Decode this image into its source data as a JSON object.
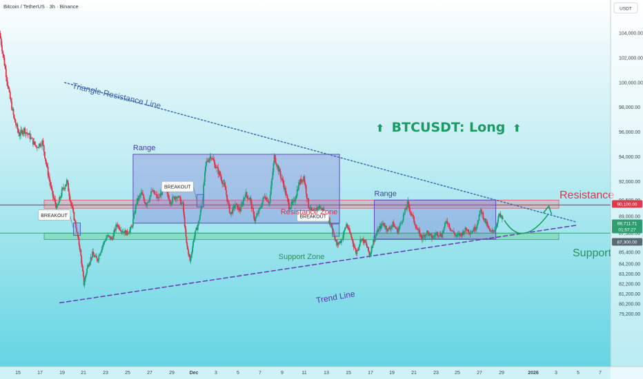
{
  "header": {
    "symbol_line": "Bitcoin / TetherUS · 3h · Binance",
    "currency_button": "USDT"
  },
  "chart_data": {
    "type": "candlestick",
    "title": "BTCUSDT: Long",
    "symbol": "BTCUSDT",
    "timeframe": "3h",
    "exchange": "Binance",
    "y_ticks": [
      104000,
      102000,
      100000,
      98000,
      96000,
      94000,
      92000,
      90500,
      89000,
      87300,
      86600,
      85400,
      84200,
      83200,
      82200,
      81200,
      80200,
      79200
    ],
    "y_tick_labels": [
      "104,000.00",
      "102,000.00",
      "100,000.00",
      "98,000.00",
      "96,000.00",
      "94,000.00",
      "92,000.00",
      "90,500.00",
      "89,000.00",
      "87,300.00",
      "86,600.00",
      "85,400.00",
      "84,200.00",
      "83,200.00",
      "82,200.00",
      "81,200.00",
      "80,200.00",
      "79,200.00"
    ],
    "x_ticks": [
      "15",
      "17",
      "19",
      "21",
      "23",
      "25",
      "27",
      "29",
      "Dec",
      "3",
      "5",
      "7",
      "9",
      "11",
      "13",
      "15",
      "17",
      "19",
      "21",
      "23",
      "25",
      "27",
      "29",
      "2026",
      "3",
      "5",
      "7"
    ],
    "price_tags": [
      {
        "label": "90,100.00",
        "value": 90100,
        "color": "#e03a4a"
      },
      {
        "label": "88,711.71",
        "value": 88711.71,
        "color": "#2e9e6e"
      },
      {
        "label": "01:57:27",
        "value": 88400,
        "color": "#2e9e6e"
      },
      {
        "label": "87,300.00",
        "value": 87300,
        "color": "#5a6a73"
      }
    ],
    "levels": {
      "resistance": 90100,
      "resistance_zone": [
        89800,
        90500
      ],
      "support": 87300,
      "support_zone": [
        86650,
        87300
      ]
    },
    "trendlines": [
      {
        "name": "Triangle Resistance Line",
        "from": [
          0.106,
          100000
        ],
        "to": [
          0.945,
          88400
        ],
        "style": "dotted",
        "color": "#3d72b8"
      },
      {
        "name": "Trend Line",
        "from": [
          0.098,
          80300
        ],
        "to": [
          0.945,
          88100
        ],
        "style": "dashed",
        "color": "#6a3fb5"
      }
    ],
    "ranges": [
      {
        "label": "Range",
        "x": [
          0.218,
          0.556
        ],
        "y": [
          88300,
          94200
        ]
      },
      {
        "label": "Range",
        "x": [
          0.613,
          0.812
        ],
        "y": [
          86700,
          90500
        ]
      }
    ],
    "breakouts": [
      {
        "label": "BREAKOUT",
        "x": 0.126,
        "value": 87700
      },
      {
        "label": "BREAKOUT",
        "x": 0.328,
        "value": 90450
      },
      {
        "label": "BREAKOUT",
        "x": 0.55,
        "value": 87600
      }
    ],
    "annotations": {
      "range": "Range",
      "resistance_zone": "Resistance Zone",
      "support_zone": "Support Zone",
      "triangle_resistance": "Triangle Resistance Line",
      "trend_line": "Trend Line",
      "resistance": "Resistance",
      "support": "Support",
      "title_arrow": "⬆"
    },
    "price_path": [
      [
        0.0,
        104000
      ],
      [
        0.008,
        101500
      ],
      [
        0.016,
        99000
      ],
      [
        0.024,
        97000
      ],
      [
        0.032,
        95800
      ],
      [
        0.04,
        96200
      ],
      [
        0.05,
        95600
      ],
      [
        0.06,
        94800
      ],
      [
        0.07,
        95200
      ],
      [
        0.078,
        93000
      ],
      [
        0.086,
        91000
      ],
      [
        0.094,
        89800
      ],
      [
        0.102,
        91200
      ],
      [
        0.11,
        92000
      ],
      [
        0.118,
        90000
      ],
      [
        0.126,
        87600
      ],
      [
        0.132,
        85500
      ],
      [
        0.138,
        82200
      ],
      [
        0.144,
        84000
      ],
      [
        0.152,
        85200
      ],
      [
        0.16,
        84600
      ],
      [
        0.168,
        86000
      ],
      [
        0.176,
        87000
      ],
      [
        0.184,
        86700
      ],
      [
        0.192,
        88200
      ],
      [
        0.2,
        87600
      ],
      [
        0.208,
        87300
      ],
      [
        0.216,
        87800
      ],
      [
        0.224,
        90300
      ],
      [
        0.232,
        91000
      ],
      [
        0.24,
        90200
      ],
      [
        0.25,
        91200
      ],
      [
        0.26,
        90600
      ],
      [
        0.27,
        91600
      ],
      [
        0.28,
        90400
      ],
      [
        0.29,
        90900
      ],
      [
        0.3,
        90100
      ],
      [
        0.306,
        86200
      ],
      [
        0.312,
        84500
      ],
      [
        0.318,
        86800
      ],
      [
        0.326,
        88400
      ],
      [
        0.332,
        90500
      ],
      [
        0.338,
        93500
      ],
      [
        0.346,
        94100
      ],
      [
        0.354,
        93200
      ],
      [
        0.362,
        92400
      ],
      [
        0.37,
        91300
      ],
      [
        0.378,
        89200
      ],
      [
        0.386,
        90100
      ],
      [
        0.394,
        89600
      ],
      [
        0.402,
        91000
      ],
      [
        0.41,
        90600
      ],
      [
        0.418,
        88600
      ],
      [
        0.426,
        89700
      ],
      [
        0.434,
        90900
      ],
      [
        0.442,
        90300
      ],
      [
        0.45,
        94000
      ],
      [
        0.458,
        92800
      ],
      [
        0.466,
        91600
      ],
      [
        0.474,
        89900
      ],
      [
        0.482,
        90300
      ],
      [
        0.49,
        91800
      ],
      [
        0.498,
        92400
      ],
      [
        0.506,
        90000
      ],
      [
        0.514,
        89300
      ],
      [
        0.522,
        90000
      ],
      [
        0.53,
        89600
      ],
      [
        0.538,
        88800
      ],
      [
        0.546,
        87600
      ],
      [
        0.552,
        86100
      ],
      [
        0.56,
        86600
      ],
      [
        0.568,
        88200
      ],
      [
        0.576,
        86900
      ],
      [
        0.584,
        85300
      ],
      [
        0.592,
        86800
      ],
      [
        0.6,
        86200
      ],
      [
        0.606,
        85100
      ],
      [
        0.612,
        86500
      ],
      [
        0.62,
        87600
      ],
      [
        0.628,
        88300
      ],
      [
        0.636,
        87600
      ],
      [
        0.644,
        88200
      ],
      [
        0.652,
        87500
      ],
      [
        0.66,
        88800
      ],
      [
        0.668,
        90200
      ],
      [
        0.676,
        89000
      ],
      [
        0.684,
        87600
      ],
      [
        0.692,
        86800
      ],
      [
        0.7,
        87400
      ],
      [
        0.708,
        86800
      ],
      [
        0.716,
        87300
      ],
      [
        0.724,
        87100
      ],
      [
        0.732,
        88600
      ],
      [
        0.74,
        87600
      ],
      [
        0.748,
        87000
      ],
      [
        0.756,
        87200
      ],
      [
        0.764,
        87700
      ],
      [
        0.772,
        87400
      ],
      [
        0.78,
        87900
      ],
      [
        0.788,
        89600
      ],
      [
        0.796,
        88400
      ],
      [
        0.804,
        87300
      ],
      [
        0.812,
        87800
      ],
      [
        0.818,
        89100
      ],
      [
        0.824,
        88700
      ]
    ],
    "projection": {
      "from": [
        0.826,
        88600
      ],
      "via": [
        0.855,
        87200
      ],
      "to": [
        0.9,
        89600
      ],
      "color": "#1f9a64"
    }
  }
}
